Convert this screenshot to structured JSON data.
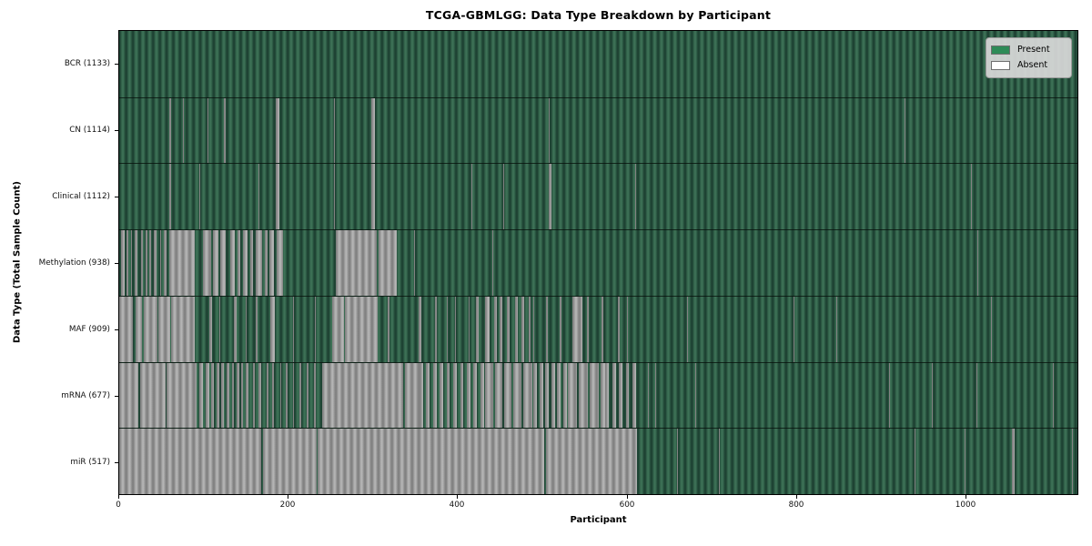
{
  "figure": {
    "title": "TCGA-GBMLGG: Data Type Breakdown by Participant",
    "xlabel": "Participant",
    "ylabel": "Data Type (Total Sample Count)"
  },
  "legend": {
    "items": [
      {
        "label": "Present",
        "color": "#2e8b57"
      },
      {
        "label": "Absent",
        "color": "#ffffff"
      }
    ]
  },
  "chart_data": {
    "type": "heatmap",
    "title": "TCGA-GBMLGG: Data Type Breakdown by Participant",
    "xlabel": "Participant",
    "ylabel": "Data Type (Total Sample Count)",
    "x_range": [
      0,
      1133
    ],
    "x_ticks": [
      0,
      200,
      400,
      600,
      800,
      1000
    ],
    "grid": false,
    "legend_position": "upper right",
    "legend_entries": [
      "Present",
      "Absent"
    ],
    "colors": {
      "present_swatch": "#2e8b57",
      "absent_swatch": "#ffffff",
      "present_fill_dark": "#1e4233",
      "present_fill_light": "#3d7156",
      "absent_fill_dark": "#828282",
      "absent_fill_light": "#b4b4b4"
    },
    "rows": [
      {
        "name": "BCR",
        "label": "BCR (1133)",
        "present_total": 1133,
        "absent_ranges": []
      },
      {
        "name": "CN",
        "label": "CN (1114)",
        "present_total": 1114,
        "absent_ranges": [
          [
            59,
            61
          ],
          [
            75,
            76
          ],
          [
            104,
            105
          ],
          [
            124,
            126
          ],
          [
            185,
            189
          ],
          [
            254,
            255
          ],
          [
            298,
            302
          ],
          [
            508,
            509
          ],
          [
            929,
            930
          ]
        ]
      },
      {
        "name": "Clinical",
        "label": "Clinical (1112)",
        "present_total": 1112,
        "absent_ranges": [
          [
            59,
            61
          ],
          [
            77,
            78
          ],
          [
            95,
            96
          ],
          [
            165,
            166
          ],
          [
            185,
            189
          ],
          [
            254,
            255
          ],
          [
            298,
            302
          ],
          [
            416,
            417
          ],
          [
            454,
            455
          ],
          [
            508,
            511
          ],
          [
            610,
            611
          ],
          [
            1007,
            1008
          ]
        ]
      },
      {
        "name": "Methylation",
        "label": "Methylation (938)",
        "present_total": 938,
        "absent_ranges": [
          [
            2,
            6
          ],
          [
            9,
            11
          ],
          [
            14,
            15
          ],
          [
            18,
            22
          ],
          [
            26,
            28
          ],
          [
            31,
            33
          ],
          [
            36,
            38
          ],
          [
            41,
            44
          ],
          [
            48,
            50
          ],
          [
            53,
            56
          ],
          [
            59,
            89
          ],
          [
            99,
            109
          ],
          [
            111,
            117
          ],
          [
            119,
            126
          ],
          [
            131,
            137
          ],
          [
            140,
            143
          ],
          [
            146,
            152
          ],
          [
            155,
            158
          ],
          [
            161,
            169
          ],
          [
            172,
            175
          ],
          [
            178,
            183
          ],
          [
            186,
            194
          ],
          [
            256,
            305
          ],
          [
            307,
            328
          ],
          [
            349,
            350
          ],
          [
            441,
            442
          ],
          [
            870,
            871
          ],
          [
            1015,
            1016
          ]
        ]
      },
      {
        "name": "MAF",
        "label": "MAF (909)",
        "present_total": 909,
        "absent_ranges": [
          [
            0,
            16
          ],
          [
            19,
            27
          ],
          [
            29,
            45
          ],
          [
            46,
            60
          ],
          [
            61,
            89
          ],
          [
            107,
            110
          ],
          [
            118,
            119
          ],
          [
            136,
            139
          ],
          [
            150,
            151
          ],
          [
            161,
            164
          ],
          [
            179,
            184
          ],
          [
            206,
            207
          ],
          [
            231,
            232
          ],
          [
            252,
            266
          ],
          [
            267,
            306
          ],
          [
            317,
            320
          ],
          [
            354,
            357
          ],
          [
            373,
            375
          ],
          [
            387,
            388
          ],
          [
            397,
            398
          ],
          [
            413,
            414
          ],
          [
            422,
            425
          ],
          [
            433,
            438
          ],
          [
            443,
            446
          ],
          [
            450,
            453
          ],
          [
            458,
            462
          ],
          [
            468,
            471
          ],
          [
            476,
            479
          ],
          [
            484,
            486
          ],
          [
            490,
            491
          ],
          [
            505,
            507
          ],
          [
            521,
            523
          ],
          [
            536,
            548
          ],
          [
            553,
            555
          ],
          [
            570,
            572
          ],
          [
            590,
            592
          ],
          [
            600,
            601
          ],
          [
            671,
            672
          ],
          [
            797,
            798
          ],
          [
            848,
            849
          ],
          [
            1031,
            1032
          ]
        ]
      },
      {
        "name": "mRNA",
        "label": "mRNA (677)",
        "present_total": 677,
        "absent_ranges": [
          [
            0,
            23
          ],
          [
            25,
            55
          ],
          [
            56,
            88
          ],
          [
            88,
            92
          ],
          [
            95,
            99
          ],
          [
            102,
            106
          ],
          [
            109,
            112
          ],
          [
            115,
            118
          ],
          [
            121,
            124
          ],
          [
            127,
            130
          ],
          [
            133,
            136
          ],
          [
            139,
            142
          ],
          [
            144,
            146
          ],
          [
            150,
            153
          ],
          [
            158,
            160
          ],
          [
            165,
            168
          ],
          [
            174,
            176
          ],
          [
            181,
            183
          ],
          [
            190,
            192
          ],
          [
            197,
            199
          ],
          [
            205,
            207
          ],
          [
            213,
            215
          ],
          [
            222,
            224
          ],
          [
            230,
            232
          ],
          [
            240,
            336
          ],
          [
            338,
            355
          ],
          [
            355,
            359
          ],
          [
            363,
            367
          ],
          [
            371,
            375
          ],
          [
            379,
            383
          ],
          [
            387,
            391
          ],
          [
            395,
            399
          ],
          [
            403,
            407
          ],
          [
            411,
            415
          ],
          [
            419,
            423
          ],
          [
            427,
            431
          ],
          [
            433,
            442
          ],
          [
            444,
            453
          ],
          [
            455,
            464
          ],
          [
            466,
            476
          ],
          [
            478,
            489
          ],
          [
            490,
            494
          ],
          [
            497,
            501
          ],
          [
            504,
            508
          ],
          [
            511,
            515
          ],
          [
            518,
            522
          ],
          [
            525,
            529
          ],
          [
            530,
            541
          ],
          [
            543,
            554
          ],
          [
            556,
            567
          ],
          [
            569,
            575
          ],
          [
            575,
            579
          ],
          [
            583,
            587
          ],
          [
            591,
            595
          ],
          [
            599,
            603
          ],
          [
            607,
            611
          ],
          [
            625,
            626
          ],
          [
            634,
            635
          ],
          [
            681,
            682
          ],
          [
            910,
            911
          ],
          [
            961,
            962
          ],
          [
            1014,
            1015
          ],
          [
            1104,
            1105
          ]
        ]
      },
      {
        "name": "miR",
        "label": "miR (517)",
        "present_total": 517,
        "absent_ranges": [
          [
            0,
            168
          ],
          [
            170,
            233
          ],
          [
            235,
            503
          ],
          [
            505,
            612
          ],
          [
            660,
            661
          ],
          [
            709,
            710
          ],
          [
            940,
            941
          ],
          [
            1000,
            1001
          ],
          [
            1056,
            1059
          ],
          [
            1127,
            1128
          ]
        ]
      }
    ]
  }
}
